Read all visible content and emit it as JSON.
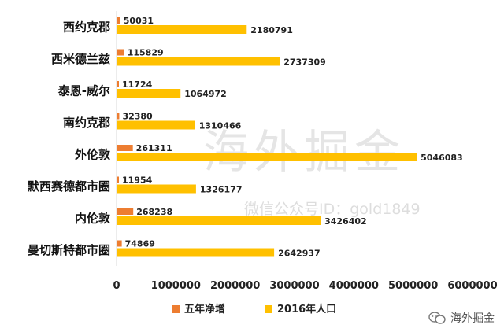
{
  "chart_data": {
    "type": "bar",
    "orientation": "horizontal",
    "categories": [
      "西约克郡",
      "西米德兰兹",
      "泰恩-威尔",
      "南约克郡",
      "外伦敦",
      "默西赛德都市圈",
      "内伦敦",
      "曼切斯特都市圈"
    ],
    "series": [
      {
        "name": "五年净增",
        "color": "#ed7d31",
        "values": [
          50031,
          115829,
          11724,
          32380,
          261311,
          11954,
          268238,
          74869
        ]
      },
      {
        "name": "2016年人口",
        "color": "#ffc000",
        "values": [
          2180791,
          2737309,
          1064972,
          1310466,
          5046083,
          1326177,
          3426402,
          2642937
        ]
      }
    ],
    "xlim": [
      0,
      6000000
    ],
    "xticks": [
      "0",
      "1000000",
      "2000000",
      "3000000",
      "4000000",
      "5000000",
      "6000000"
    ],
    "legend_position": "bottom"
  },
  "watermark": {
    "main": "海外掘金",
    "sub": "微信公众号ID：gold1849"
  },
  "badge": {
    "text": "海外掘金",
    "icon": "wechat-icon"
  }
}
